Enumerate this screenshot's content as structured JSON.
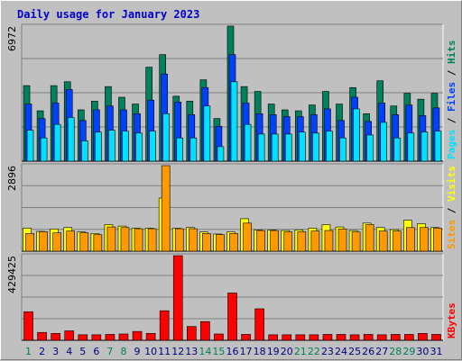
{
  "colors": {
    "background": "#c0c0c0",
    "plot_background": "#c0c0c0",
    "title": "#0000cc",
    "hits": "#00805c",
    "files": "#0040ff",
    "pages": "#00e0ff",
    "visits": "#ffff00",
    "sites": "#ff9900",
    "kbytes": "#ff0000",
    "weekend_day": "#00805c",
    "weekday": "#000080",
    "divider": "#000000"
  },
  "chart_data": {
    "type": "bar",
    "title": "Daily usage for January 2023",
    "grid": true,
    "categories": [
      "1",
      "2",
      "3",
      "4",
      "5",
      "6",
      "7",
      "8",
      "9",
      "10",
      "11",
      "12",
      "13",
      "14",
      "15",
      "16",
      "17",
      "18",
      "19",
      "20",
      "21",
      "22",
      "23",
      "24",
      "25",
      "26",
      "27",
      "28",
      "29",
      "30",
      "31"
    ],
    "weekend_days": [
      "1",
      "7",
      "8",
      "14",
      "15",
      "21",
      "22",
      "28",
      "29"
    ],
    "panels": [
      {
        "name": "hits-files-pages",
        "ymax_label": "6972",
        "ylim": [
          0,
          6972
        ],
        "legend": [
          {
            "label": "Hits",
            "color": "#00805c"
          },
          {
            "label": "Files",
            "color": "#0040ff"
          },
          {
            "label": "Pages",
            "color": "#00e0ff"
          }
        ],
        "series": [
          {
            "name": "Hits",
            "values": [
              3900,
              2600,
              3900,
              4100,
              2650,
              3100,
              3850,
              3300,
              2950,
              4850,
              5500,
              3350,
              3100,
              4200,
              2200,
              6972,
              3850,
              3600,
              2950,
              2650,
              2600,
              2900,
              3600,
              2950,
              3800,
              2450,
              4150,
              2850,
              3500,
              3200,
              3500
            ]
          },
          {
            "name": "Files",
            "values": [
              2950,
              2200,
              3000,
              3700,
              2100,
              2650,
              2850,
              2650,
              2450,
              3150,
              4500,
              3050,
              2400,
              3800,
              1800,
              5500,
              3000,
              2450,
              2400,
              2300,
              2300,
              2400,
              2700,
              2100,
              3300,
              2050,
              3000,
              2400,
              2900,
              2350,
              2750
            ]
          },
          {
            "name": "Pages",
            "values": [
              1600,
              1200,
              1900,
              2250,
              1050,
              1500,
              1600,
              1550,
              1450,
              1550,
              2450,
              1200,
              1200,
              2850,
              750,
              4100,
              1900,
              1400,
              1400,
              1400,
              1500,
              1450,
              1550,
              1200,
              2700,
              1350,
              2000,
              1200,
              1450,
              1500,
              1550
            ]
          }
        ]
      },
      {
        "name": "visits-sites",
        "ymax_label": "2896",
        "ylim": [
          0,
          2896
        ],
        "legend": [
          {
            "label": "Visits",
            "color": "#ffff00"
          },
          {
            "label": "Sites",
            "color": "#ff9900"
          }
        ],
        "series": [
          {
            "name": "Visits",
            "values": [
              780,
              670,
              750,
              800,
              650,
              600,
              900,
              850,
              780,
              780,
              1800,
              780,
              800,
              650,
              580,
              650,
              1100,
              720,
              720,
              700,
              720,
              780,
              900,
              820,
              700,
              950,
              800,
              730,
              1050,
              930,
              800
            ]
          },
          {
            "name": "Sites",
            "values": [
              600,
              660,
              620,
              680,
              620,
              560,
              820,
              800,
              760,
              760,
              2896,
              760,
              760,
              600,
              560,
              600,
              950,
              700,
              700,
              650,
              660,
              680,
              700,
              750,
              650,
              900,
              680,
              680,
              800,
              800,
              780
            ]
          }
        ]
      },
      {
        "name": "kbytes",
        "ymax_label": "429425",
        "ylim": [
          0,
          429425
        ],
        "legend": [
          {
            "label": "KBytes",
            "color": "#ff0000"
          }
        ],
        "series": [
          {
            "name": "KBytes",
            "values": [
              145000,
              40000,
              35000,
              48000,
              28000,
              28000,
              30000,
              32000,
              45000,
              35000,
              150000,
              429425,
              70000,
              95000,
              32000,
              240000,
              30000,
              160000,
              28000,
              28000,
              28000,
              28000,
              30000,
              30000,
              28000,
              30000,
              28000,
              30000,
              30000,
              35000,
              30000
            ]
          }
        ]
      }
    ]
  }
}
